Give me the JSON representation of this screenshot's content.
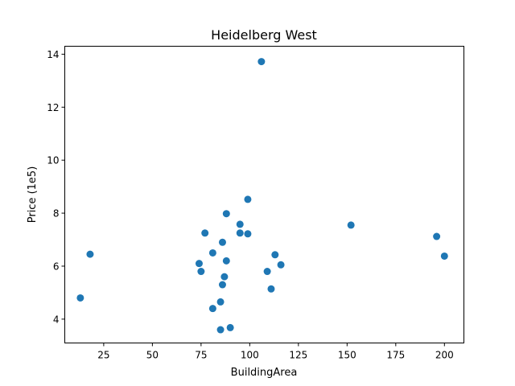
{
  "chart_data": {
    "type": "scatter",
    "title": "Heidelberg West",
    "xlabel": "BuildingArea",
    "ylabel": "Price (1e5)",
    "xlim": [
      5,
      210
    ],
    "ylim": [
      3.1,
      14.3
    ],
    "xticks": [
      25,
      50,
      75,
      100,
      125,
      150,
      175,
      200
    ],
    "yticks": [
      4,
      6,
      8,
      10,
      12,
      14
    ],
    "grid": false,
    "marker_color": "#1f77b4",
    "points": [
      {
        "x": 13,
        "y": 4.8
      },
      {
        "x": 18,
        "y": 6.45
      },
      {
        "x": 74,
        "y": 6.1
      },
      {
        "x": 75,
        "y": 5.8
      },
      {
        "x": 77,
        "y": 7.25
      },
      {
        "x": 81,
        "y": 6.5
      },
      {
        "x": 81,
        "y": 4.4
      },
      {
        "x": 85,
        "y": 4.65
      },
      {
        "x": 85,
        "y": 3.6
      },
      {
        "x": 86,
        "y": 6.9
      },
      {
        "x": 86,
        "y": 5.3
      },
      {
        "x": 87,
        "y": 5.6
      },
      {
        "x": 88,
        "y": 7.98
      },
      {
        "x": 88,
        "y": 6.2
      },
      {
        "x": 90,
        "y": 3.68
      },
      {
        "x": 95,
        "y": 7.58
      },
      {
        "x": 95,
        "y": 7.25
      },
      {
        "x": 99,
        "y": 8.52
      },
      {
        "x": 99,
        "y": 7.22
      },
      {
        "x": 106,
        "y": 13.72
      },
      {
        "x": 109,
        "y": 5.8
      },
      {
        "x": 111,
        "y": 5.14
      },
      {
        "x": 113,
        "y": 6.43
      },
      {
        "x": 116,
        "y": 6.05
      },
      {
        "x": 152,
        "y": 7.55
      },
      {
        "x": 196,
        "y": 7.12
      },
      {
        "x": 200,
        "y": 6.38
      }
    ]
  }
}
